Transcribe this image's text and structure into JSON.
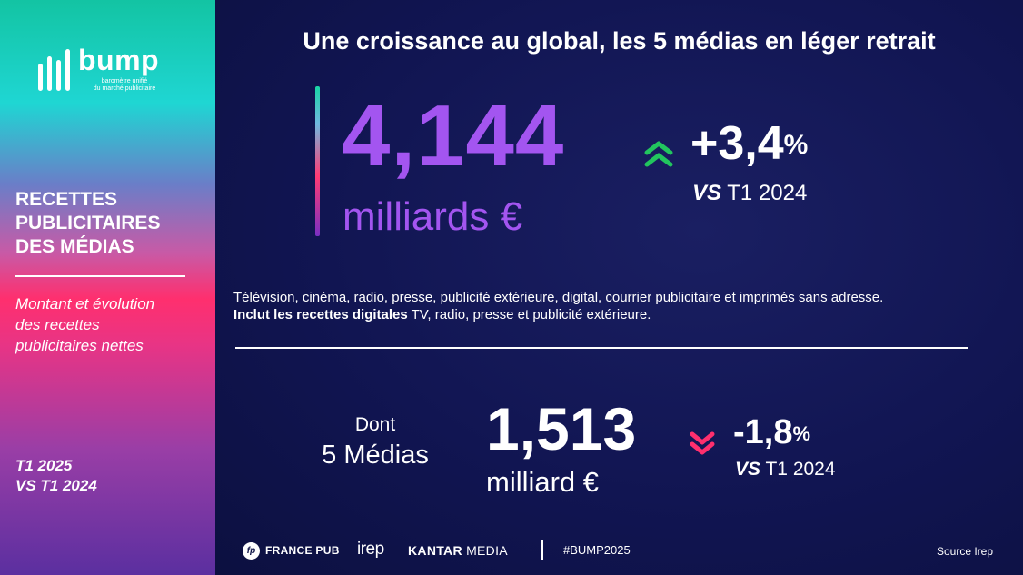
{
  "sidebar": {
    "logo": {
      "word": "bump",
      "sub_line1": "baromètre unifié",
      "sub_line2": "du marché publicitaire"
    },
    "title_line1": "RECETTES",
    "title_line2": "PUBLICITAIRES",
    "title_line3": "DES MÉDIAS",
    "desc_line1": "Montant et évolution",
    "desc_line2": "des recettes",
    "desc_line3": "publicitaires nettes",
    "period_line1": "T1 2025",
    "period_line2": "VS T1 2024"
  },
  "main": {
    "headline": "Une croissance au global, les 5 médias en léger retrait",
    "total": {
      "value": "4,144",
      "unit": "milliards €",
      "change": "+3,4",
      "change_symbol": "%",
      "vs_prefix": "VS",
      "vs_period": "T1 2024",
      "trend_icon": "double-chevron-up-icon",
      "trend_color": "#22c55e"
    },
    "description": {
      "line1": "Télévision, cinéma, radio, presse, publicité extérieure, digital, courrier publicitaire et imprimés sans adresse.",
      "line2_bold": "Inclut les recettes digitales",
      "line2_rest": " TV, radio, presse et publicité extérieure."
    },
    "five_medias": {
      "label_small": "Dont",
      "label_large": "5 Médias",
      "value": "1,513",
      "unit": "milliard €",
      "change": "-1,8",
      "change_symbol": "%",
      "vs_prefix": "VS",
      "vs_period": "T1 2024",
      "trend_icon": "double-chevron-down-icon",
      "trend_color": "#ff2f6e"
    },
    "accent_color": "#a355f0"
  },
  "footer": {
    "france_pub_mark": "fp",
    "france_pub": "FRANCE PUB",
    "irep": "irep",
    "kantar_bold": "KANTAR",
    "kantar_rest": " MEDIA",
    "hashtag": "#BUMP2025",
    "source": "Source Irep"
  }
}
